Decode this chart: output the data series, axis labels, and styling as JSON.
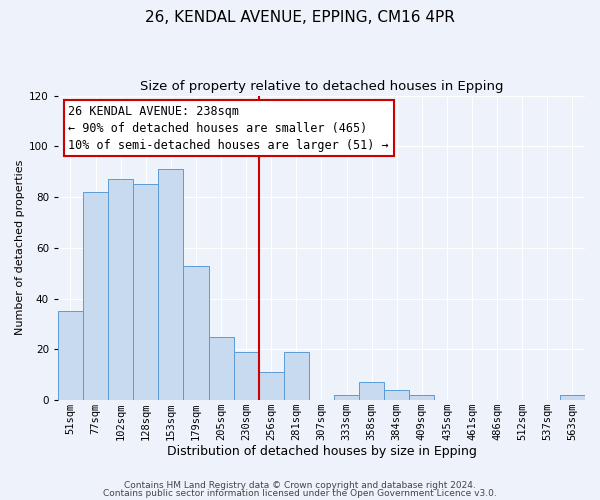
{
  "title1": "26, KENDAL AVENUE, EPPING, CM16 4PR",
  "title2": "Size of property relative to detached houses in Epping",
  "xlabel": "Distribution of detached houses by size in Epping",
  "ylabel": "Number of detached properties",
  "categories": [
    "51sqm",
    "77sqm",
    "102sqm",
    "128sqm",
    "153sqm",
    "179sqm",
    "205sqm",
    "230sqm",
    "256sqm",
    "281sqm",
    "307sqm",
    "333sqm",
    "358sqm",
    "384sqm",
    "409sqm",
    "435sqm",
    "461sqm",
    "486sqm",
    "512sqm",
    "537sqm",
    "563sqm"
  ],
  "values": [
    35,
    82,
    87,
    85,
    91,
    53,
    25,
    19,
    11,
    19,
    0,
    2,
    7,
    4,
    2,
    0,
    0,
    0,
    0,
    0,
    2
  ],
  "bar_color": "#c8daf0",
  "bar_edge_color": "#5b9bd5",
  "vline_x_index": 7,
  "vline_color": "#cc0000",
  "annotation_text": "26 KENDAL AVENUE: 238sqm\n← 90% of detached houses are smaller (465)\n10% of semi-detached houses are larger (51) →",
  "annotation_box_color": "#ffffff",
  "annotation_box_edge_color": "#cc0000",
  "ylim": [
    0,
    120
  ],
  "yticks": [
    0,
    20,
    40,
    60,
    80,
    100,
    120
  ],
  "footer1": "Contains HM Land Registry data © Crown copyright and database right 2024.",
  "footer2": "Contains public sector information licensed under the Open Government Licence v3.0.",
  "background_color": "#eef2fa",
  "plot_background_color": "#eef2fa",
  "title1_fontsize": 11,
  "title2_fontsize": 9.5,
  "xlabel_fontsize": 9,
  "ylabel_fontsize": 8,
  "tick_fontsize": 7.5,
  "annotation_fontsize": 8.5,
  "footer_fontsize": 6.5
}
